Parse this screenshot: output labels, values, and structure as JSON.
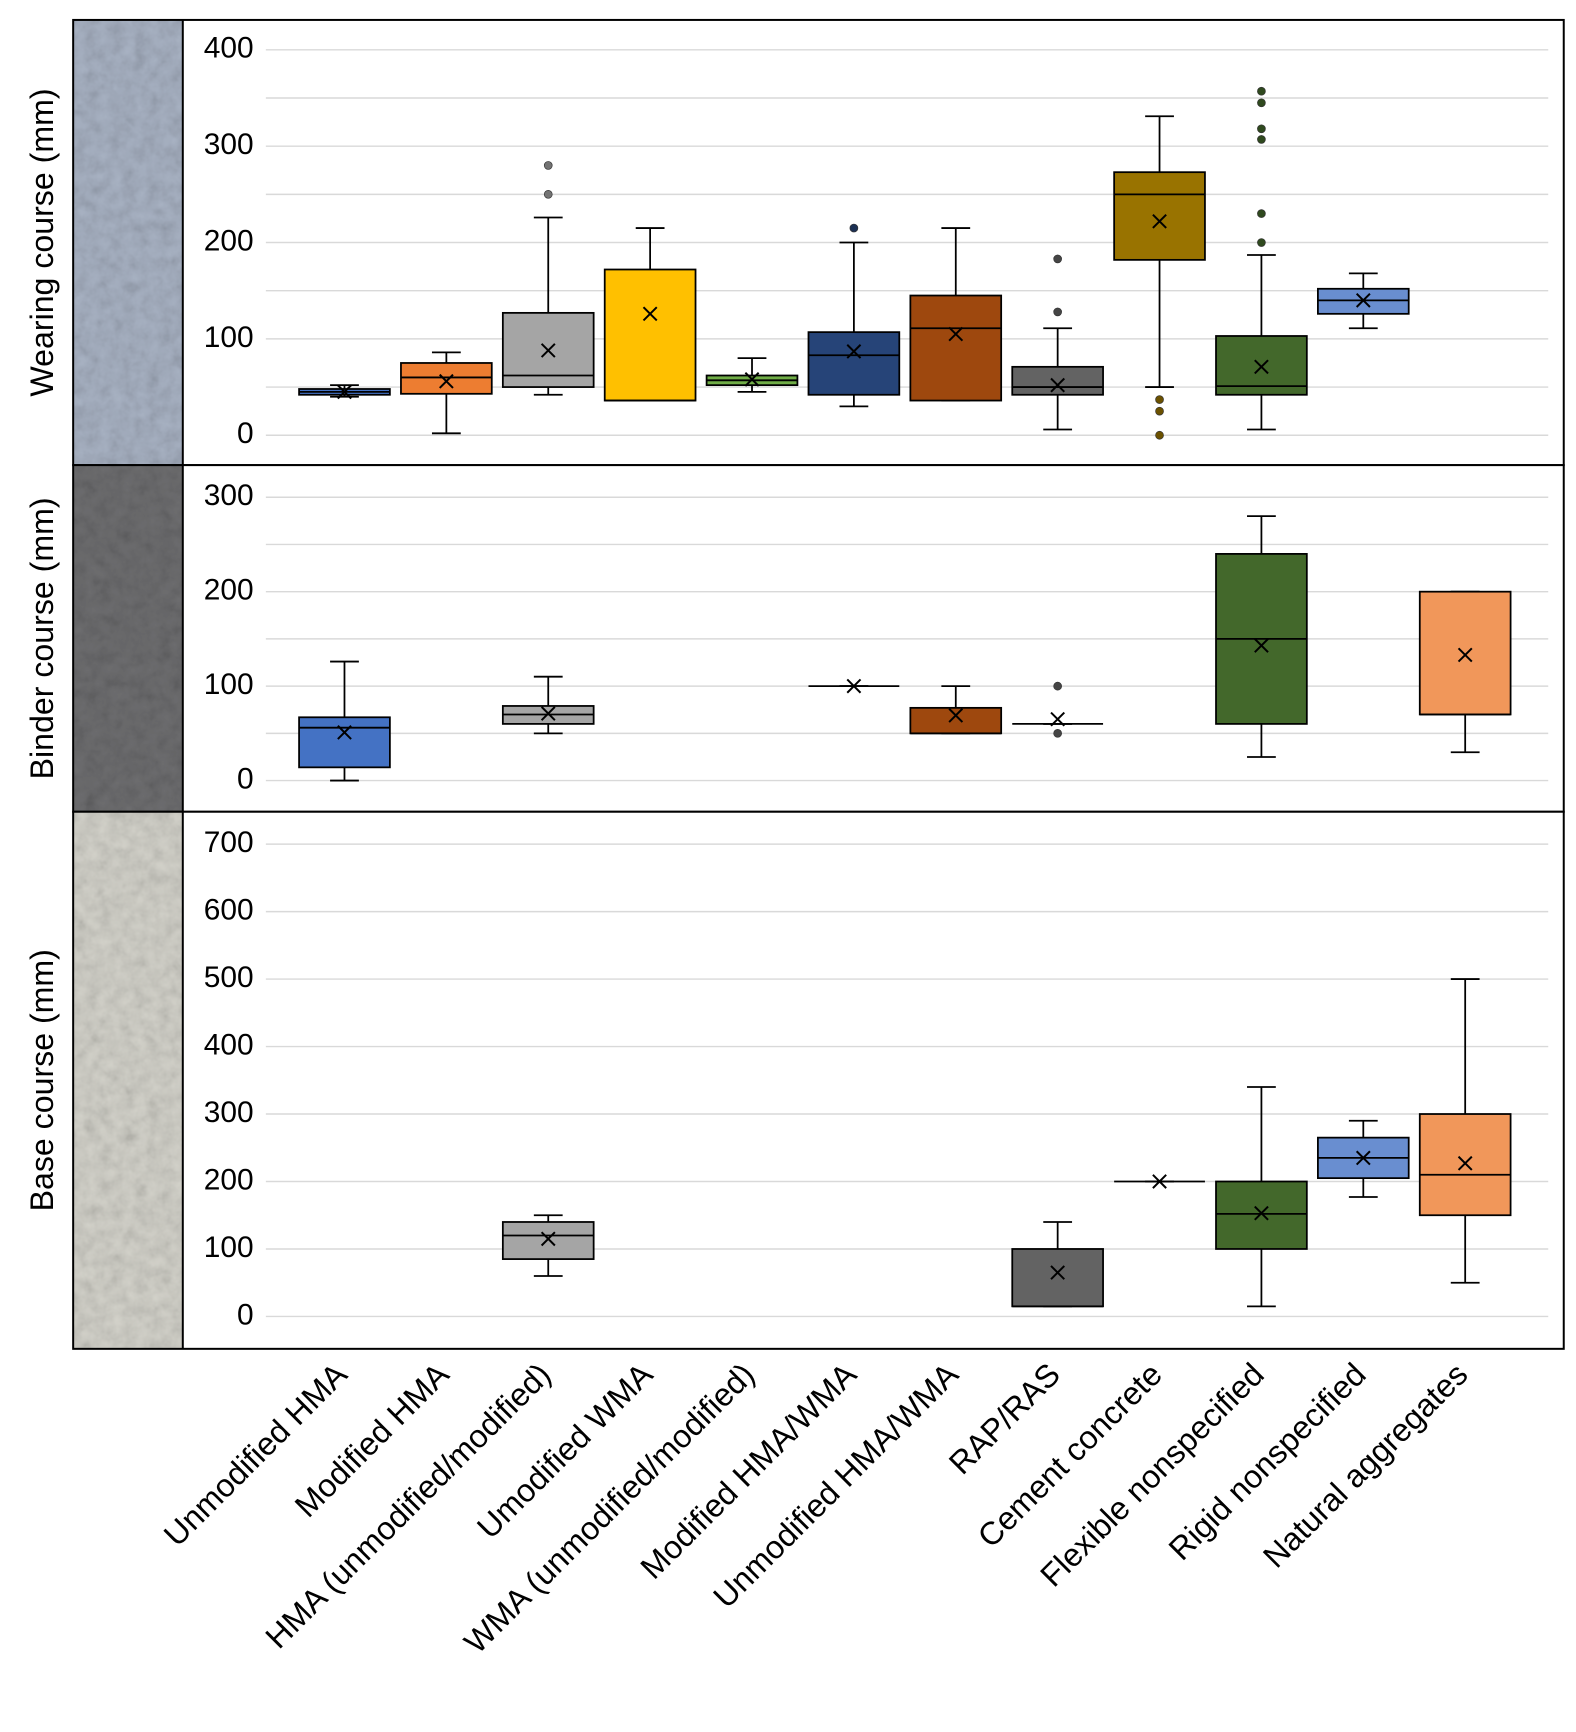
{
  "chart_data": {
    "type": "box",
    "categories": [
      "Unmodified HMA",
      "Modified HMA",
      "HMA (unmodified/modified)",
      "Umodified WMA",
      "WMA (unmodified/modified)",
      "Modified HMA/WMA",
      "Unmodified HMA/WMA",
      "RAP/RAS",
      "Cement concrete",
      "Flexible nonspecified",
      "Rigid nonspecified",
      "Natural aggregates"
    ],
    "panels": [
      {
        "ylabel": "Wearing course (mm)",
        "ylim": [
          -31,
          431
        ],
        "yticks": [
          0,
          100,
          200,
          300,
          400
        ],
        "minor_grid": [
          50,
          150,
          250,
          350
        ],
        "texture": "#a9b3c4",
        "boxes": [
          {
            "color": "#4472c4",
            "min": 40,
            "q1": 42,
            "median": 45,
            "q3": 48,
            "max": 52,
            "mean": 45,
            "outliers": []
          },
          {
            "color": "#ed7d31",
            "min": 2,
            "q1": 43,
            "median": 60,
            "q3": 75,
            "max": 86,
            "mean": 56,
            "outliers": []
          },
          {
            "color": "#a5a5a5",
            "min": 42,
            "q1": 50,
            "median": 62,
            "q3": 127,
            "max": 226,
            "mean": 88,
            "outliers": [
              250,
              280
            ]
          },
          {
            "color": "#ffc000",
            "min": 36,
            "q1": 36,
            "median": 36,
            "q3": 172,
            "max": 215,
            "mean": 126,
            "outliers": []
          },
          {
            "color": "#70ad47",
            "min": 45,
            "q1": 52,
            "median": 57,
            "q3": 62,
            "max": 80,
            "mean": 58,
            "outliers": []
          },
          {
            "color": "#264478",
            "min": 30,
            "q1": 42,
            "median": 83,
            "q3": 107,
            "max": 200,
            "mean": 87,
            "outliers": [
              215
            ]
          },
          {
            "color": "#9e480e",
            "min": 36,
            "q1": 36,
            "median": 111,
            "q3": 145,
            "max": 215,
            "mean": 105,
            "outliers": []
          },
          {
            "color": "#636363",
            "min": 6,
            "q1": 42,
            "median": 50,
            "q3": 71,
            "max": 111,
            "mean": 52,
            "outliers": [
              128,
              183
            ]
          },
          {
            "color": "#997300",
            "min": 50,
            "q1": 182,
            "median": 250,
            "q3": 273,
            "max": 331,
            "mean": 222,
            "outliers": [
              0,
              25,
              37
            ]
          },
          {
            "color": "#43682b",
            "min": 6,
            "q1": 42,
            "median": 51,
            "q3": 103,
            "max": 187,
            "mean": 71,
            "outliers": [
              200,
              230,
              307,
              318,
              345,
              357
            ]
          },
          {
            "color": "#698ed0",
            "min": 111,
            "q1": 126,
            "median": 140,
            "q3": 152,
            "max": 168,
            "mean": 140,
            "outliers": []
          },
          null
        ]
      },
      {
        "ylabel": "Binder course (mm)",
        "ylim": [
          -33,
          334
        ],
        "yticks": [
          0,
          100,
          200,
          300
        ],
        "minor_grid": [
          50,
          150,
          250
        ],
        "texture": "#6e6e70",
        "boxes": [
          {
            "color": "#4472c4",
            "min": 0,
            "q1": 14,
            "median": 56,
            "q3": 67,
            "max": 126,
            "mean": 51,
            "outliers": []
          },
          null,
          {
            "color": "#a5a5a5",
            "min": 50,
            "q1": 60,
            "median": 70,
            "q3": 79,
            "max": 110,
            "mean": 71,
            "outliers": []
          },
          null,
          null,
          {
            "color": "#264478",
            "min": 100,
            "q1": 100,
            "median": 100,
            "q3": 100,
            "max": 100,
            "mean": 100,
            "outliers": []
          },
          {
            "color": "#9e480e",
            "min": 50,
            "q1": 50,
            "median": 50,
            "q3": 77,
            "max": 100,
            "mean": 69,
            "outliers": []
          },
          {
            "color": "#636363",
            "min": 60,
            "q1": 60,
            "median": 60,
            "q3": 60,
            "max": 60,
            "mean": 65,
            "outliers": [
              50,
              100
            ]
          },
          null,
          {
            "color": "#43682b",
            "min": 25,
            "q1": 60,
            "median": 150,
            "q3": 240,
            "max": 280,
            "mean": 143,
            "outliers": []
          },
          null,
          {
            "color": "#f1975a",
            "min": 30,
            "q1": 70,
            "median": 70,
            "q3": 200,
            "max": 200,
            "mean": 133,
            "outliers": []
          }
        ]
      },
      {
        "ylabel": "Base course (mm)",
        "ylim": [
          -48,
          748
        ],
        "yticks": [
          0,
          100,
          200,
          300,
          400,
          500,
          600,
          700
        ],
        "minor_grid": [],
        "texture": "#d4d3cb",
        "boxes": [
          null,
          null,
          {
            "color": "#a5a5a5",
            "min": 60,
            "q1": 85,
            "median": 120,
            "q3": 140,
            "max": 150,
            "mean": 115,
            "outliers": []
          },
          null,
          null,
          null,
          null,
          {
            "color": "#636363",
            "min": 15,
            "q1": 15,
            "median": 15,
            "q3": 100,
            "max": 140,
            "mean": 65,
            "outliers": []
          },
          {
            "color": "#997300",
            "min": 200,
            "q1": 200,
            "median": 200,
            "q3": 200,
            "max": 200,
            "mean": 200,
            "outliers": []
          },
          {
            "color": "#43682b",
            "min": 15,
            "q1": 100,
            "median": 152,
            "q3": 200,
            "max": 340,
            "mean": 153,
            "outliers": []
          },
          {
            "color": "#698ed0",
            "min": 177,
            "q1": 205,
            "median": 235,
            "q3": 265,
            "max": 290,
            "mean": 235,
            "outliers": []
          },
          {
            "color": "#f1975a",
            "min": 50,
            "q1": 150,
            "median": 210,
            "q3": 300,
            "max": 500,
            "mean": 227,
            "outliers": []
          }
        ]
      }
    ]
  }
}
